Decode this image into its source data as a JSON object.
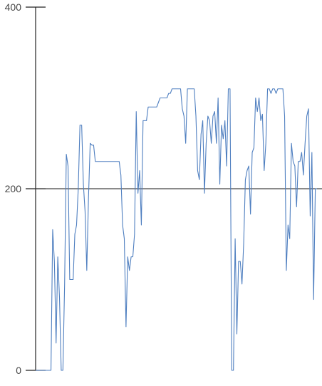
{
  "chart_data": {
    "type": "line",
    "title": "",
    "xlabel": "",
    "ylabel": "",
    "ylim": [
      0,
      400
    ],
    "yticks": [
      {
        "value": 0,
        "label": "0"
      },
      {
        "value": 200,
        "label": "200"
      },
      {
        "value": 400,
        "label": "400"
      }
    ],
    "reference_line": 200,
    "grid": false,
    "legend": "none",
    "colors": {
      "series": "#4f7fc0",
      "axis": "#222222",
      "reference": "#444444"
    },
    "series": [
      {
        "values": [
          0,
          0,
          0,
          0,
          0,
          0,
          0,
          0,
          0,
          0,
          155,
          120,
          30,
          125,
          80,
          0,
          0,
          95,
          238,
          225,
          100,
          100,
          100,
          150,
          160,
          200,
          270,
          270,
          205,
          175,
          110,
          190,
          250,
          248,
          248,
          230,
          230,
          230,
          230,
          230,
          230,
          230,
          230,
          230,
          230,
          230,
          230,
          230,
          230,
          230,
          215,
          160,
          145,
          48,
          125,
          110,
          125,
          125,
          150,
          285,
          195,
          220,
          160,
          275,
          275,
          275,
          290,
          290,
          290,
          290,
          290,
          290,
          295,
          300,
          300,
          300,
          300,
          300,
          305,
          305,
          310,
          310,
          310,
          310,
          310,
          310,
          288,
          280,
          250,
          310,
          310,
          310,
          310,
          310,
          280,
          220,
          210,
          260,
          275,
          195,
          250,
          280,
          275,
          250,
          280,
          285,
          250,
          300,
          205,
          270,
          255,
          275,
          225,
          310,
          310,
          0,
          0,
          145,
          40,
          120,
          120,
          95,
          140,
          210,
          220,
          225,
          172,
          240,
          245,
          300,
          285,
          300,
          275,
          282,
          220,
          250,
          310,
          310,
          305,
          310,
          310,
          305,
          310,
          310,
          310,
          310,
          280,
          110,
          160,
          145,
          250,
          230,
          225,
          180,
          230,
          230,
          240,
          215,
          250,
          280,
          288,
          170,
          240,
          78,
          200,
          200
        ]
      }
    ]
  }
}
